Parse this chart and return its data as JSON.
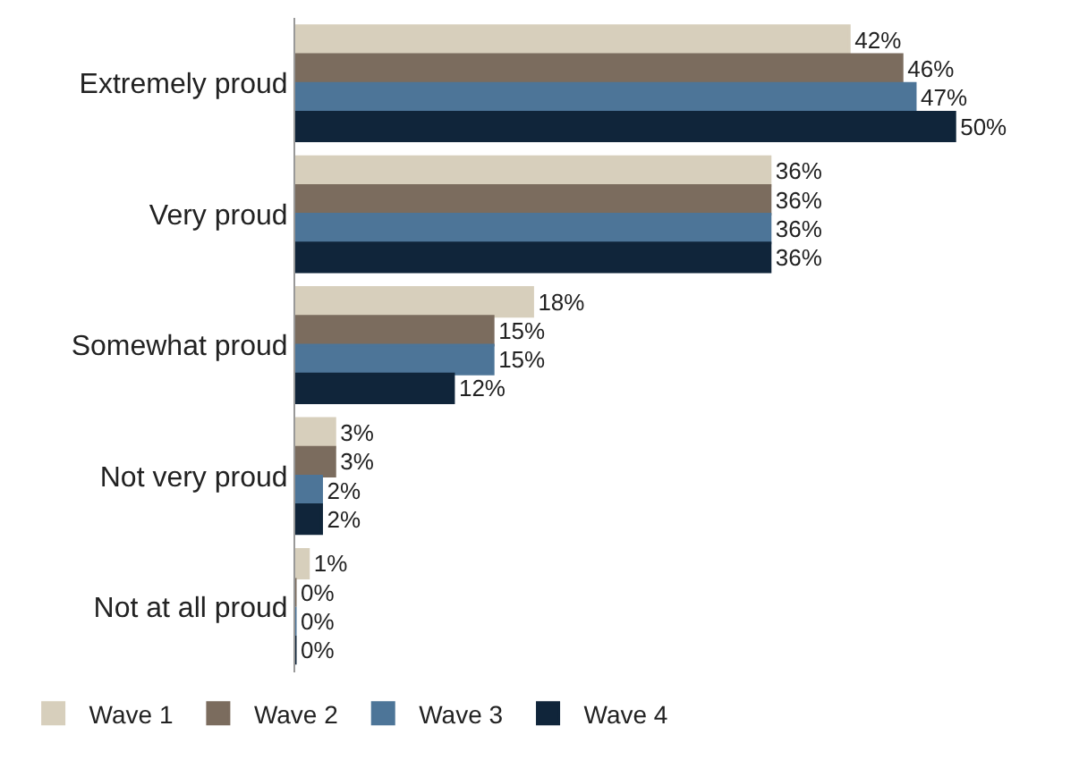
{
  "chart_data": {
    "type": "bar",
    "orientation": "horizontal",
    "categories": [
      "Extremely proud",
      "Very proud",
      "Somewhat proud",
      "Not very proud",
      "Not at all proud"
    ],
    "series": [
      {
        "name": "Wave 1",
        "color": "#d7cfbc",
        "values": [
          42,
          36,
          18,
          3,
          1
        ],
        "value_labels": [
          "42%",
          "36%",
          "18%",
          "3%",
          "1%"
        ]
      },
      {
        "name": "Wave 2",
        "color": "#7b6c5e",
        "values": [
          46,
          36,
          15,
          3,
          0
        ],
        "value_labels": [
          "46%",
          "36%",
          "15%",
          "3%",
          "0%"
        ]
      },
      {
        "name": "Wave 3",
        "color": "#4d7598",
        "values": [
          47,
          36,
          15,
          2,
          0
        ],
        "value_labels": [
          "47%",
          "36%",
          "15%",
          "2%",
          "0%"
        ]
      },
      {
        "name": "Wave 4",
        "color": "#10253a",
        "values": [
          50,
          36,
          12,
          2,
          0
        ],
        "value_labels": [
          "50%",
          "36%",
          "12%",
          "2%",
          "0%"
        ]
      }
    ],
    "legend": "bottom left",
    "grid": false
  }
}
